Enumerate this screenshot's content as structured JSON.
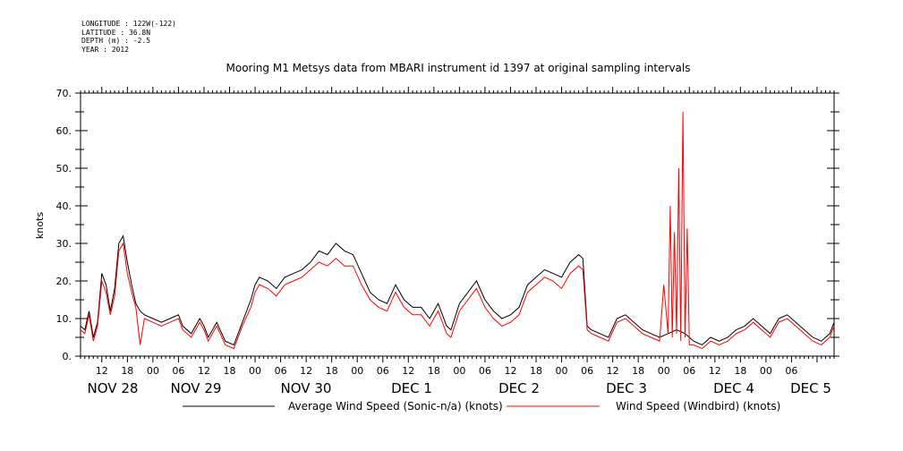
{
  "meta": {
    "longitude": "LONGITUDE : 122W(-122)",
    "latitude": "LATITUDE : 36.8N",
    "depth": "DEPTH (m) : -2.5",
    "year": "YEAR : 2012"
  },
  "chart_data": {
    "type": "line",
    "title": "Mooring M1 Metsys data from MBARI instrument id 1397 at original sampling intervals",
    "xlabel": "",
    "ylabel": "knots",
    "ylim": [
      0,
      70
    ],
    "yticks": [
      0,
      10,
      20,
      30,
      40,
      50,
      60,
      70
    ],
    "xlim_hours": [
      0,
      168
    ],
    "x_tick_labels": [
      "12",
      "18",
      "00",
      "06",
      "12",
      "18",
      "00",
      "06",
      "12",
      "18",
      "00",
      "06",
      "12",
      "18",
      "00",
      "06",
      "12",
      "18",
      "00",
      "06",
      "12",
      "18",
      "00",
      "06",
      "12",
      "18",
      "00",
      "06"
    ],
    "x_day_labels": [
      "NOV 28",
      "NOV 29",
      "NOV 30",
      "DEC  1",
      "DEC  2",
      "DEC  3",
      "DEC  4",
      "DEC  5"
    ],
    "grid": false,
    "legend": "bottom",
    "series": [
      {
        "name": "Average Wind Speed (Sonic-n/a) (knots)",
        "color": "#000000",
        "points": [
          [
            0,
            8
          ],
          [
            1,
            7
          ],
          [
            2,
            12
          ],
          [
            3,
            5
          ],
          [
            4,
            9
          ],
          [
            5,
            22
          ],
          [
            6,
            19
          ],
          [
            7,
            12
          ],
          [
            8,
            18
          ],
          [
            9,
            30
          ],
          [
            10,
            32
          ],
          [
            11,
            25
          ],
          [
            12,
            19
          ],
          [
            13,
            14
          ],
          [
            14,
            12
          ],
          [
            15,
            11
          ],
          [
            17,
            10
          ],
          [
            19,
            9
          ],
          [
            21,
            10
          ],
          [
            23,
            11
          ],
          [
            24,
            8
          ],
          [
            26,
            6
          ],
          [
            28,
            10
          ],
          [
            29,
            8
          ],
          [
            30,
            5
          ],
          [
            32,
            9
          ],
          [
            34,
            4
          ],
          [
            36,
            3
          ],
          [
            38,
            9
          ],
          [
            40,
            15
          ],
          [
            41,
            19
          ],
          [
            42,
            21
          ],
          [
            44,
            20
          ],
          [
            46,
            18
          ],
          [
            48,
            21
          ],
          [
            50,
            22
          ],
          [
            52,
            23
          ],
          [
            54,
            25
          ],
          [
            56,
            28
          ],
          [
            58,
            27
          ],
          [
            60,
            30
          ],
          [
            62,
            28
          ],
          [
            64,
            27
          ],
          [
            66,
            22
          ],
          [
            68,
            17
          ],
          [
            70,
            15
          ],
          [
            72,
            14
          ],
          [
            74,
            19
          ],
          [
            76,
            15
          ],
          [
            78,
            13
          ],
          [
            80,
            13
          ],
          [
            82,
            10
          ],
          [
            84,
            14
          ],
          [
            86,
            8
          ],
          [
            87,
            7
          ],
          [
            89,
            14
          ],
          [
            91,
            17
          ],
          [
            93,
            20
          ],
          [
            95,
            15
          ],
          [
            97,
            12
          ],
          [
            99,
            10
          ],
          [
            101,
            11
          ],
          [
            103,
            13
          ],
          [
            105,
            19
          ],
          [
            107,
            21
          ],
          [
            109,
            23
          ],
          [
            111,
            22
          ],
          [
            113,
            21
          ],
          [
            115,
            25
          ],
          [
            117,
            27
          ],
          [
            118,
            26
          ],
          [
            119,
            8
          ],
          [
            120,
            7
          ],
          [
            122,
            6
          ],
          [
            124,
            5
          ],
          [
            126,
            10
          ],
          [
            128,
            11
          ],
          [
            130,
            9
          ],
          [
            132,
            7
          ],
          [
            134,
            6
          ],
          [
            136,
            5
          ],
          [
            138,
            6
          ],
          [
            140,
            7
          ],
          [
            142,
            6
          ],
          [
            144,
            4
          ],
          [
            146,
            3
          ],
          [
            148,
            5
          ],
          [
            150,
            4
          ],
          [
            152,
            5
          ],
          [
            154,
            7
          ],
          [
            156,
            8
          ],
          [
            158,
            10
          ],
          [
            160,
            8
          ],
          [
            162,
            6
          ],
          [
            164,
            10
          ],
          [
            166,
            11
          ],
          [
            168,
            9
          ],
          [
            170,
            7
          ],
          [
            172,
            5
          ],
          [
            174,
            4
          ],
          [
            176,
            6
          ],
          [
            177,
            9
          ]
        ]
      },
      {
        "name": "Wind Speed (Windbird) (knots)",
        "color": "#ff0000",
        "points": [
          [
            0,
            7
          ],
          [
            1,
            6
          ],
          [
            2,
            11
          ],
          [
            3,
            4
          ],
          [
            4,
            8
          ],
          [
            5,
            20
          ],
          [
            6,
            17
          ],
          [
            7,
            11
          ],
          [
            8,
            16
          ],
          [
            9,
            28
          ],
          [
            10,
            30
          ],
          [
            11,
            22
          ],
          [
            12,
            17
          ],
          [
            13,
            13
          ],
          [
            14,
            3
          ],
          [
            15,
            10
          ],
          [
            17,
            9
          ],
          [
            19,
            8
          ],
          [
            21,
            9
          ],
          [
            23,
            10
          ],
          [
            24,
            7
          ],
          [
            26,
            5
          ],
          [
            28,
            9
          ],
          [
            29,
            7
          ],
          [
            30,
            4
          ],
          [
            32,
            8
          ],
          [
            34,
            3
          ],
          [
            36,
            2
          ],
          [
            38,
            8
          ],
          [
            40,
            13
          ],
          [
            41,
            17
          ],
          [
            42,
            19
          ],
          [
            44,
            18
          ],
          [
            46,
            16
          ],
          [
            48,
            19
          ],
          [
            50,
            20
          ],
          [
            52,
            21
          ],
          [
            54,
            23
          ],
          [
            56,
            25
          ],
          [
            58,
            24
          ],
          [
            60,
            26
          ],
          [
            62,
            24
          ],
          [
            64,
            24
          ],
          [
            66,
            19
          ],
          [
            68,
            15
          ],
          [
            70,
            13
          ],
          [
            72,
            12
          ],
          [
            74,
            17
          ],
          [
            76,
            13
          ],
          [
            78,
            11
          ],
          [
            80,
            11
          ],
          [
            82,
            8
          ],
          [
            84,
            12
          ],
          [
            86,
            6
          ],
          [
            87,
            5
          ],
          [
            89,
            12
          ],
          [
            91,
            15
          ],
          [
            93,
            18
          ],
          [
            95,
            13
          ],
          [
            97,
            10
          ],
          [
            99,
            8
          ],
          [
            101,
            9
          ],
          [
            103,
            11
          ],
          [
            105,
            17
          ],
          [
            107,
            19
          ],
          [
            109,
            21
          ],
          [
            111,
            20
          ],
          [
            113,
            18
          ],
          [
            115,
            22
          ],
          [
            117,
            24
          ],
          [
            118,
            23
          ],
          [
            119,
            7
          ],
          [
            120,
            6
          ],
          [
            122,
            5
          ],
          [
            124,
            4
          ],
          [
            126,
            9
          ],
          [
            128,
            10
          ],
          [
            130,
            8
          ],
          [
            132,
            6
          ],
          [
            134,
            5
          ],
          [
            136,
            4
          ],
          [
            137,
            19
          ],
          [
            138,
            6
          ],
          [
            138.5,
            40
          ],
          [
            139,
            5
          ],
          [
            139.5,
            33
          ],
          [
            140,
            6
          ],
          [
            140.5,
            50
          ],
          [
            141,
            4
          ],
          [
            141.5,
            65
          ],
          [
            142,
            5
          ],
          [
            142.5,
            34
          ],
          [
            143,
            3
          ],
          [
            144,
            3
          ],
          [
            146,
            2
          ],
          [
            148,
            4
          ],
          [
            150,
            3
          ],
          [
            152,
            4
          ],
          [
            154,
            6
          ],
          [
            156,
            7
          ],
          [
            158,
            9
          ],
          [
            160,
            7
          ],
          [
            162,
            5
          ],
          [
            164,
            9
          ],
          [
            166,
            10
          ],
          [
            168,
            8
          ],
          [
            170,
            6
          ],
          [
            172,
            4
          ],
          [
            174,
            3
          ],
          [
            176,
            5
          ],
          [
            177,
            8
          ]
        ]
      }
    ]
  }
}
